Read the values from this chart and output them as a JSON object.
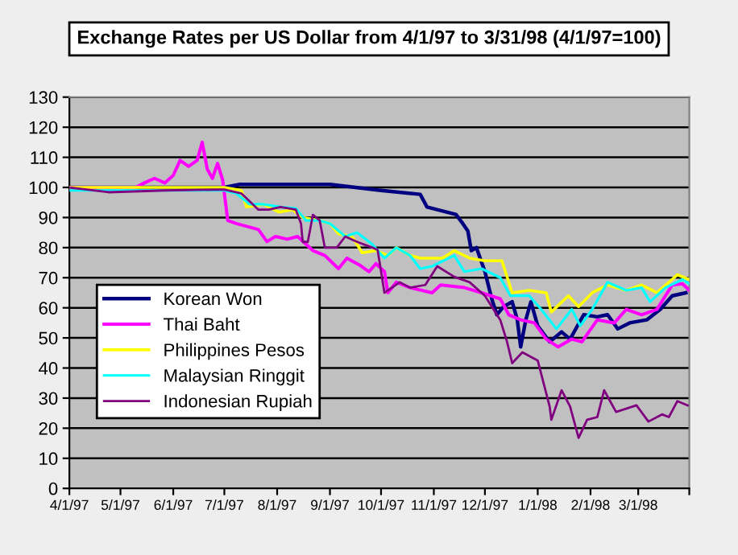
{
  "chart_data": {
    "type": "line",
    "title": "Exchange Rates per US Dollar from 4/1/97 to 3/31/98 (4/1/97=100)",
    "xlim": [
      "1997-04-01",
      "1998-03-31"
    ],
    "xticks": [
      {
        "value": "1997-04-01",
        "label": "4/1/97"
      },
      {
        "value": "1997-05-01",
        "label": "5/1/97"
      },
      {
        "value": "1997-06-01",
        "label": "6/1/97"
      },
      {
        "value": "1997-07-01",
        "label": "7/1/97"
      },
      {
        "value": "1997-08-01",
        "label": "8/1/97"
      },
      {
        "value": "1997-09-01",
        "label": "9/1/97"
      },
      {
        "value": "1997-10-01",
        "label": "10/1/97"
      },
      {
        "value": "1997-11-01",
        "label": "11/1/97"
      },
      {
        "value": "1997-12-01",
        "label": "12/1/97"
      },
      {
        "value": "1998-01-01",
        "label": "1/1/98"
      },
      {
        "value": "1998-02-01",
        "label": "2/1/98"
      },
      {
        "value": "1998-03-01",
        "label": "3/1/98"
      },
      {
        "value": "1998-03-31",
        "label": null
      }
    ],
    "ylim": [
      0,
      130
    ],
    "yticks": [
      0,
      10,
      20,
      30,
      40,
      50,
      60,
      70,
      80,
      90,
      100,
      110,
      120,
      130
    ],
    "grid": "y",
    "legend": "left",
    "marker": "none",
    "line_style": "solid",
    "series": [
      {
        "name": "Korean Won",
        "color": "#000080",
        "x": [
          "1997-04-01",
          "1997-07-01",
          "1997-07-10",
          "1997-09-01",
          "1997-10-01",
          "1997-10-24",
          "1997-10-28",
          "1997-11-14",
          "1997-11-18",
          "1997-11-21",
          "1997-11-23",
          "1997-11-26",
          "1997-12-01",
          "1997-12-05",
          "1997-12-08",
          "1997-12-12",
          "1997-12-17",
          "1997-12-20",
          "1997-12-22",
          "1997-12-25",
          "1997-12-28",
          "1998-01-01",
          "1998-01-08",
          "1998-01-15",
          "1998-01-20",
          "1998-01-28",
          "1998-02-05",
          "1998-02-11",
          "1998-02-17",
          "1998-02-24",
          "1998-03-06",
          "1998-03-14",
          "1998-03-21",
          "1998-03-29"
        ],
        "values": [
          100,
          100,
          101,
          101,
          99,
          97.7,
          93.5,
          91,
          88,
          85.5,
          79,
          80,
          72,
          63,
          57.7,
          60.4,
          62,
          56,
          47,
          56,
          62,
          54,
          48.7,
          52,
          49.6,
          57.7,
          57,
          57.7,
          53,
          55,
          56,
          59.5,
          64,
          65
        ]
      },
      {
        "name": "Thai Baht",
        "color": "#ff00ff",
        "x": [
          "1997-04-01",
          "1997-05-10",
          "1997-05-15",
          "1997-05-21",
          "1997-05-27",
          "1997-06-01",
          "1997-06-05",
          "1997-06-10",
          "1997-06-15",
          "1997-06-18",
          "1997-06-21",
          "1997-06-24",
          "1997-06-27",
          "1997-06-30",
          "1997-07-03",
          "1997-07-08",
          "1997-07-21",
          "1997-07-26",
          "1997-07-31",
          "1997-08-07",
          "1997-08-13",
          "1997-08-22",
          "1997-08-29",
          "1997-09-06",
          "1997-09-11",
          "1997-09-19",
          "1997-09-24",
          "1997-09-28",
          "1997-10-03",
          "1997-10-05",
          "1997-10-10",
          "1997-10-18",
          "1997-10-31",
          "1997-11-05",
          "1997-11-19",
          "1997-11-29",
          "1997-12-10",
          "1997-12-15",
          "1997-12-22",
          "1997-12-30",
          "1998-01-06",
          "1998-01-13",
          "1998-01-21",
          "1998-01-27",
          "1998-02-05",
          "1998-02-15",
          "1998-02-22",
          "1998-03-03",
          "1998-03-12",
          "1998-03-21",
          "1998-03-27",
          "1998-03-31"
        ],
        "values": [
          100,
          100,
          101.5,
          103,
          101.5,
          104,
          109,
          107,
          109,
          115,
          106,
          103,
          108,
          102.5,
          89,
          88,
          86,
          82,
          83.7,
          82.8,
          83.7,
          79,
          77.4,
          73,
          76.5,
          74,
          72,
          74.7,
          72,
          65,
          68.5,
          66.7,
          65,
          67.6,
          66.7,
          65,
          63,
          57.7,
          56,
          55,
          49.6,
          47,
          49.6,
          48.7,
          56,
          55,
          59.5,
          57.7,
          59.5,
          67.6,
          68,
          65.8
        ]
      },
      {
        "name": "Philippines Pesos",
        "color": "#ffff00",
        "x": [
          "1997-04-01",
          "1997-07-01",
          "1997-07-11",
          "1997-07-14",
          "1997-07-24",
          "1997-08-02",
          "1997-08-10",
          "1997-08-16",
          "1997-08-26",
          "1997-09-01",
          "1997-09-06",
          "1997-09-14",
          "1997-09-20",
          "1997-09-28",
          "1997-10-05",
          "1997-10-10",
          "1997-10-18",
          "1997-10-24",
          "1997-11-06",
          "1997-11-13",
          "1997-11-22",
          "1997-12-01",
          "1997-12-11",
          "1997-12-17",
          "1997-12-27",
          "1998-01-06",
          "1998-01-09",
          "1998-01-19",
          "1998-01-25",
          "1998-02-02",
          "1998-02-11",
          "1998-02-22",
          "1998-03-03",
          "1998-03-12",
          "1998-03-24",
          "1998-03-31"
        ],
        "values": [
          100,
          100,
          99,
          93.5,
          94.4,
          91.8,
          92.6,
          90,
          89,
          88,
          84.6,
          83.7,
          78.3,
          79,
          77.4,
          80,
          77.4,
          76.5,
          76.5,
          79,
          76.5,
          75.6,
          75.6,
          65,
          65.8,
          65,
          58.6,
          64,
          60.4,
          65,
          67.6,
          65.8,
          67.6,
          65,
          71,
          69.4
        ]
      },
      {
        "name": "Malaysian Ringgit",
        "color": "#00ffff",
        "x": [
          "1997-04-01",
          "1997-07-01",
          "1997-07-08",
          "1997-07-16",
          "1997-07-24",
          "1997-08-03",
          "1997-08-12",
          "1997-08-18",
          "1997-08-26",
          "1997-09-01",
          "1997-09-10",
          "1997-09-17",
          "1997-09-26",
          "1997-09-29",
          "1997-10-03",
          "1997-10-10",
          "1997-10-18",
          "1997-10-24",
          "1997-10-31",
          "1997-11-13",
          "1997-11-19",
          "1997-11-29",
          "1997-12-10",
          "1997-12-16",
          "1997-12-27",
          "1998-01-03",
          "1998-01-12",
          "1998-01-21",
          "1998-01-26",
          "1998-02-02",
          "1998-02-11",
          "1998-02-22",
          "1998-03-03",
          "1998-03-08",
          "1998-03-17",
          "1998-03-27",
          "1998-03-31"
        ],
        "values": [
          99,
          99,
          98,
          94.4,
          94.4,
          93.5,
          93,
          89,
          89,
          88,
          83.7,
          85,
          81,
          79,
          76.5,
          80,
          77.4,
          73,
          73.8,
          77.4,
          72,
          73,
          70,
          64,
          64,
          59.5,
          53,
          59.5,
          54,
          59.5,
          68.5,
          65.8,
          66.7,
          62,
          66.7,
          69.4,
          68
        ]
      },
      {
        "name": "Indonesian Rupiah",
        "color": "#800080",
        "x": [
          "1997-04-01",
          "1997-04-24",
          "1997-05-27",
          "1997-07-01",
          "1997-07-11",
          "1997-07-21",
          "1997-07-27",
          "1997-08-03",
          "1997-08-12",
          "1997-08-15",
          "1997-08-16",
          "1997-08-19",
          "1997-08-22",
          "1997-08-26",
          "1997-08-29",
          "1997-09-05",
          "1997-09-10",
          "1997-09-17",
          "1997-09-26",
          "1997-09-29",
          "1997-10-03",
          "1997-10-12",
          "1997-10-18",
          "1997-10-27",
          "1997-11-03",
          "1997-11-13",
          "1997-11-22",
          "1997-12-01",
          "1997-12-10",
          "1997-12-14",
          "1997-12-17",
          "1997-12-23",
          "1998-01-01",
          "1998-01-08",
          "1998-01-09",
          "1998-01-15",
          "1998-01-20",
          "1998-01-25",
          "1998-01-30",
          "1998-02-05",
          "1998-02-09",
          "1998-02-16",
          "1998-02-28",
          "1998-03-07",
          "1998-03-15",
          "1998-03-19",
          "1998-03-24",
          "1998-03-30"
        ],
        "values": [
          100,
          98.4,
          99,
          99.3,
          98,
          92.6,
          92.6,
          93.5,
          92.6,
          88,
          81.9,
          81.9,
          90.9,
          89,
          80,
          80,
          83.7,
          81.9,
          80,
          79.2,
          65,
          68.5,
          66.7,
          67.6,
          73.8,
          70.3,
          68.5,
          64,
          56,
          48.7,
          41.6,
          45.2,
          42.5,
          27.2,
          22.8,
          32.6,
          27.2,
          16.8,
          22.8,
          23.7,
          32.6,
          25.4,
          27.6,
          22.2,
          24.6,
          23.7,
          29,
          27.6
        ]
      }
    ]
  }
}
